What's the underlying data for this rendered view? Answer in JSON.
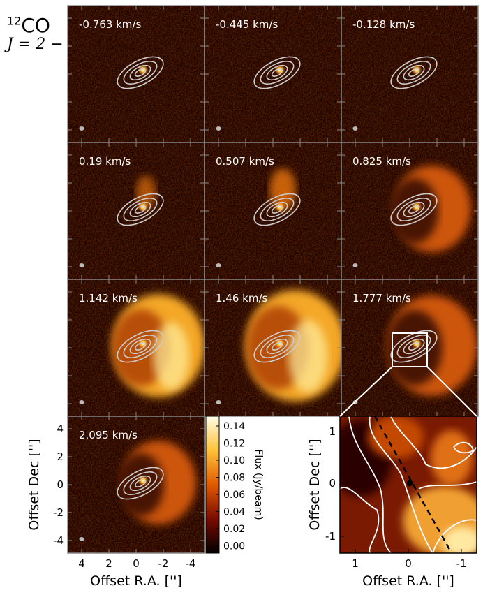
{
  "title": {
    "isotope": "12",
    "molecule": "CO",
    "transition": "J = 2 − 1"
  },
  "panels": [
    {
      "velocity": "-0.763 km/s",
      "emission": 0.0
    },
    {
      "velocity": "-0.445 km/s",
      "emission": 0.0
    },
    {
      "velocity": "-0.128 km/s",
      "emission": 0.0
    },
    {
      "velocity": "0.19 km/s",
      "emission": 0.15
    },
    {
      "velocity": "0.507 km/s",
      "emission": 0.3
    },
    {
      "velocity": "0.825 km/s",
      "emission": 0.55
    },
    {
      "velocity": "1.142 km/s",
      "emission": 0.85
    },
    {
      "velocity": "1.46 km/s",
      "emission": 1.0
    },
    {
      "velocity": "1.777 km/s",
      "emission": 0.8
    },
    {
      "velocity": "2.095 km/s",
      "emission": 0.5
    }
  ],
  "chart_data": [
    {
      "type": "heatmap",
      "description_units": "channel maps of 12CO J=2-1 flux",
      "xlabel": "Offset R.A. ['']",
      "ylabel": "Offset Dec ['']",
      "xlim": [
        5,
        -5
      ],
      "ylim": [
        -5,
        5
      ],
      "xticks": [
        "4",
        "2",
        "0",
        "-2",
        "-4"
      ],
      "yticks": [
        "4",
        "2",
        "0",
        "-2",
        "-4"
      ],
      "channels": [
        "-0.763 km/s",
        "-0.445 km/s",
        "-0.128 km/s",
        "0.19 km/s",
        "0.507 km/s",
        "0.825 km/s",
        "1.142 km/s",
        "1.46 km/s",
        "1.777 km/s",
        "2.095 km/s"
      ]
    },
    {
      "type": "colorbar",
      "label": "Flux (Jy/beam)",
      "range": [
        0,
        0.15
      ],
      "ticks": [
        "0.14",
        "0.12",
        "0.10",
        "0.08",
        "0.06",
        "0.04",
        "0.02",
        "0.00"
      ],
      "colormap": "afmhot"
    },
    {
      "type": "heatmap",
      "description_units": "zoom of 1.777 km/s channel with contours",
      "xlabel": "Offset R.A. ['']",
      "ylabel": "Offset Dec ['']",
      "xlim": [
        1.3,
        -1.3
      ],
      "ylim": [
        -1.3,
        1.3
      ],
      "xticks": [
        "1",
        "0",
        "-1"
      ],
      "yticks": [
        "1",
        "0",
        "-1"
      ]
    }
  ],
  "colors": {
    "frame": "#888888",
    "ring": "#cccccc",
    "background": "#1a0200"
  }
}
